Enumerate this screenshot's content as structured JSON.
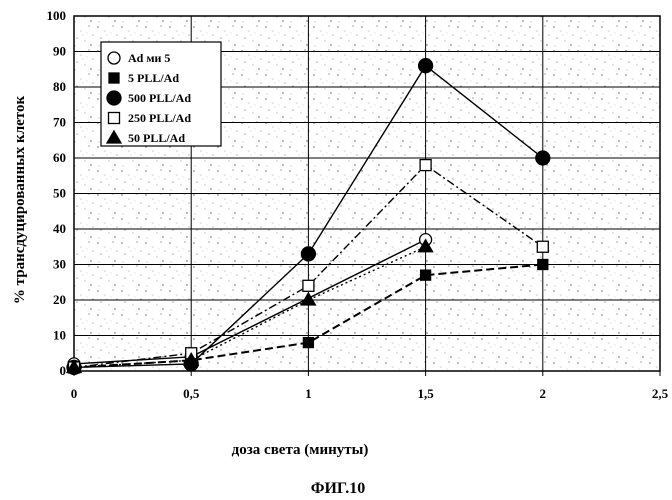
{
  "chart_data": {
    "type": "line",
    "title": "",
    "xlabel": "доза света (минуты)",
    "ylabel": "% трансдуцированных клеток",
    "caption": "ФИГ.10",
    "xlim": [
      0,
      2.5
    ],
    "ylim": [
      0,
      100
    ],
    "x_ticks": [
      "0",
      "0,5",
      "1",
      "1,5",
      "2",
      "2,5"
    ],
    "y_ticks": [
      "0",
      "10",
      "20",
      "30",
      "40",
      "50",
      "60",
      "70",
      "80",
      "90",
      "100"
    ],
    "x_tick_values": [
      0,
      0.5,
      1,
      1.5,
      2,
      2.5
    ],
    "y_tick_values": [
      0,
      10,
      20,
      30,
      40,
      50,
      60,
      70,
      80,
      90,
      100
    ],
    "grid": true,
    "legend_position": "top-left",
    "series": [
      {
        "name": "Ad ми 5",
        "marker": "circle-open",
        "line": "solid",
        "color": "#000000",
        "x": [
          0,
          0.5,
          1.5
        ],
        "y": [
          2,
          4,
          37
        ]
      },
      {
        "name": "5 PLL/Ad",
        "marker": "square-filled",
        "line": "dashed",
        "color": "#000000",
        "x": [
          0,
          0.5,
          1,
          1.5,
          2
        ],
        "y": [
          1,
          3,
          8,
          27,
          30
        ]
      },
      {
        "name": "500 PLL/Ad",
        "marker": "circle-filled",
        "line": "solid",
        "color": "#000000",
        "x": [
          0,
          0.5,
          1,
          1.5,
          2
        ],
        "y": [
          1,
          2,
          33,
          86,
          60
        ]
      },
      {
        "name": "250 PLL/Ad",
        "marker": "square-open",
        "line": "dashdot",
        "color": "#000000",
        "x": [
          0,
          0.5,
          1,
          1.5,
          2
        ],
        "y": [
          1,
          5,
          24,
          58,
          35
        ]
      },
      {
        "name": "50 PLL/Ad",
        "marker": "triangle-filled",
        "line": "dotted",
        "color": "#000000",
        "x": [
          0,
          0.5,
          1,
          1.5
        ],
        "y": [
          1,
          3,
          20,
          35
        ]
      }
    ]
  }
}
